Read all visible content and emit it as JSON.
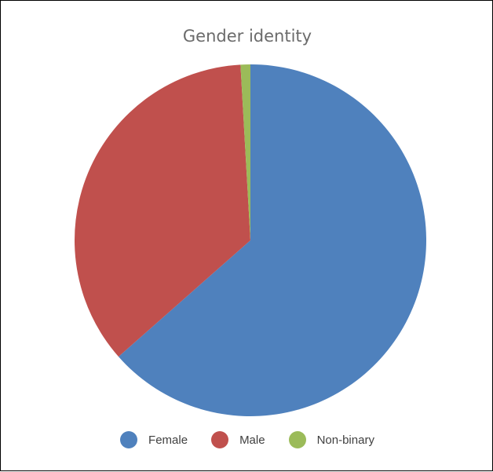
{
  "chart_data": {
    "type": "pie",
    "title": "Gender identity",
    "categories": [
      "Female",
      "Male",
      "Non-binary"
    ],
    "values": [
      63.5,
      35.6,
      0.9
    ],
    "colors": [
      "#4f81bd",
      "#c0504d",
      "#9bbb59"
    ],
    "legend_position": "bottom"
  }
}
